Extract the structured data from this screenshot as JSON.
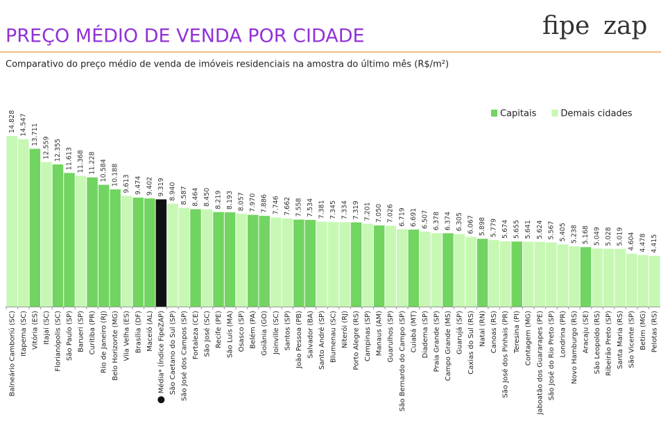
{
  "chart_data": {
    "type": "bar",
    "title": "PREÇO MÉDIO DE VENDA POR CIDADE",
    "subtitle": "Comparativo do preço médio de venda de imóveis residenciais na amostra do último mês (R$/m²)",
    "logo": [
      "fipe",
      "zap"
    ],
    "legend": [
      {
        "name": "Capitais",
        "color": "#72d461"
      },
      {
        "name": "Demais cidades",
        "color": "#c6f8b3"
      }
    ],
    "categories": [
      "Balneário Camboriú (SC)",
      "Itapema (SC)",
      "Vitória (ES)",
      "Itajaí (SC)",
      "Florianópolis (SC)",
      "São Paulo (SP)",
      "Barueri (SP)",
      "Curitiba (PR)",
      "Rio de Janeiro (RJ)",
      "Belo Horizonte (MG)",
      "Vila Velha (ES)",
      "Brasília (DF)",
      "Maceió (AL)",
      "Média* (Índice FipeZAP)",
      "São Caetano do Sul (SP)",
      "São José dos Campos (SP)",
      "Fortaleza (CE)",
      "São José (SC)",
      "Recife (PE)",
      "São Luís (MA)",
      "Osasco (SP)",
      "Belém (PA)",
      "Goiânia (GO)",
      "Joinville (SC)",
      "Santos (SP)",
      "João Pessoa (PB)",
      "Salvador (BA)",
      "Santo André (SP)",
      "Blumenau (SC)",
      "Niterói (RJ)",
      "Porto Alegre (RS)",
      "Campinas (SP)",
      "Manaus (AM)",
      "Guarulhos (SP)",
      "São Bernardo do Campo (SP)",
      "Cuiabá (MT)",
      "Diadema (SP)",
      "Praia Grande (SP)",
      "Campo Grande (MS)",
      "Guarujá (SP)",
      "Caxias do Sul (RS)",
      "Natal (RN)",
      "Canoas (RS)",
      "São José dos Pinhais (PR)",
      "Teresina (PI)",
      "Contagem (MG)",
      "Jaboatão dos Guararapes (PE)",
      "São José do Rio Preto (SP)",
      "Londrina (PR)",
      "Novo Hamburgo (RS)",
      "Aracaju (SE)",
      "São Leopoldo (RS)",
      "Ribeirão Preto (SP)",
      "Santa Maria (RS)",
      "São Vicente (SP)",
      "Betim (MG)",
      "Pelotas (RS)"
    ],
    "values": [
      14828,
      14547,
      13711,
      12559,
      12355,
      11613,
      11368,
      11228,
      10584,
      10188,
      9613,
      9474,
      9402,
      9319,
      8940,
      8587,
      8464,
      8450,
      8219,
      8193,
      8057,
      7970,
      7886,
      7746,
      7662,
      7558,
      7534,
      7381,
      7345,
      7334,
      7319,
      7201,
      7050,
      7026,
      6719,
      6691,
      6507,
      6378,
      6374,
      6305,
      6067,
      5898,
      5779,
      5674,
      5655,
      5641,
      5624,
      5567,
      5405,
      5238,
      5168,
      5049,
      5028,
      5019,
      4604,
      4478,
      4415
    ],
    "value_labels": [
      "14.828",
      "14.547",
      "13.711",
      "12.559",
      "12.355",
      "11.613",
      "11.368",
      "11.228",
      "10.584",
      "10.188",
      "9.613",
      "9.474",
      "9.402",
      "9.319",
      "8.940",
      "8.587",
      "8.464",
      "8.450",
      "8.219",
      "8.193",
      "8.057",
      "7.970",
      "7.886",
      "7.746",
      "7.662",
      "7.558",
      "7.534",
      "7.381",
      "7.345",
      "7.334",
      "7.319",
      "7.201",
      "7.050",
      "7.026",
      "6.719",
      "6.691",
      "6.507",
      "6.378",
      "6.374",
      "6.305",
      "6.067",
      "5.898",
      "5.779",
      "5.674",
      "5.655",
      "5.641",
      "5.624",
      "5.567",
      "5.405",
      "5.238",
      "5.168",
      "5.049",
      "5.028",
      "5.019",
      "4.604",
      "4.478",
      "4.415"
    ],
    "colors": [
      "#c6f8b3",
      "#c6f8b3",
      "#72d461",
      "#c6f8b3",
      "#72d461",
      "#72d461",
      "#c6f8b3",
      "#72d461",
      "#72d461",
      "#72d461",
      "#c6f8b3",
      "#72d461",
      "#72d461",
      "#111111",
      "#c6f8b3",
      "#c6f8b3",
      "#72d461",
      "#c6f8b3",
      "#72d461",
      "#72d461",
      "#c6f8b3",
      "#72d461",
      "#72d461",
      "#c6f8b3",
      "#c6f8b3",
      "#72d461",
      "#72d461",
      "#c6f8b3",
      "#c6f8b3",
      "#c6f8b3",
      "#72d461",
      "#c6f8b3",
      "#72d461",
      "#c6f8b3",
      "#c6f8b3",
      "#72d461",
      "#c6f8b3",
      "#c6f8b3",
      "#72d461",
      "#c6f8b3",
      "#c6f8b3",
      "#72d461",
      "#c6f8b3",
      "#c6f8b3",
      "#72d461",
      "#c6f8b3",
      "#c6f8b3",
      "#c6f8b3",
      "#c6f8b3",
      "#c6f8b3",
      "#72d461",
      "#c6f8b3",
      "#c6f8b3",
      "#c6f8b3",
      "#c6f8b3",
      "#c6f8b3",
      "#c6f8b3"
    ]
  }
}
